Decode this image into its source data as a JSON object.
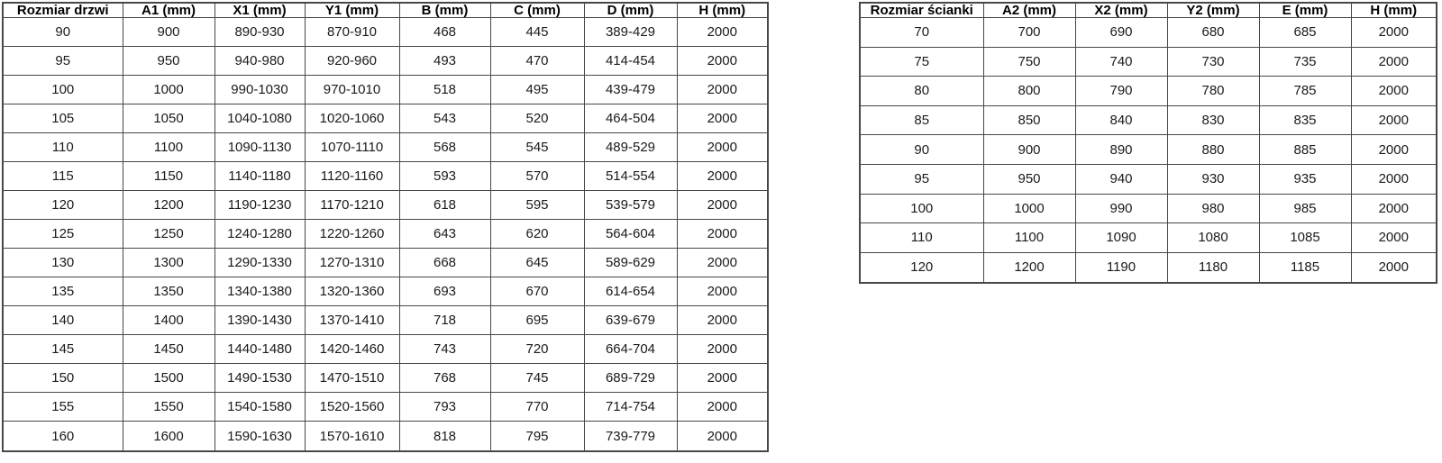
{
  "colors": {
    "background": "#ffffff",
    "border": "#474747",
    "text": "#1a1a1a",
    "header_text": "#000000"
  },
  "door_table": {
    "headers": [
      "Rozmiar drzwi",
      "A1 (mm)",
      "X1 (mm)",
      "Y1 (mm)",
      "B (mm)",
      "C (mm)",
      "D (mm)",
      "H (mm)"
    ],
    "rows": [
      [
        "90",
        "900",
        "890-930",
        "870-910",
        "468",
        "445",
        "389-429",
        "2000"
      ],
      [
        "95",
        "950",
        "940-980",
        "920-960",
        "493",
        "470",
        "414-454",
        "2000"
      ],
      [
        "100",
        "1000",
        "990-1030",
        "970-1010",
        "518",
        "495",
        "439-479",
        "2000"
      ],
      [
        "105",
        "1050",
        "1040-1080",
        "1020-1060",
        "543",
        "520",
        "464-504",
        "2000"
      ],
      [
        "110",
        "1100",
        "1090-1130",
        "1070-1110",
        "568",
        "545",
        "489-529",
        "2000"
      ],
      [
        "115",
        "1150",
        "1140-1180",
        "1120-1160",
        "593",
        "570",
        "514-554",
        "2000"
      ],
      [
        "120",
        "1200",
        "1190-1230",
        "1170-1210",
        "618",
        "595",
        "539-579",
        "2000"
      ],
      [
        "125",
        "1250",
        "1240-1280",
        "1220-1260",
        "643",
        "620",
        "564-604",
        "2000"
      ],
      [
        "130",
        "1300",
        "1290-1330",
        "1270-1310",
        "668",
        "645",
        "589-629",
        "2000"
      ],
      [
        "135",
        "1350",
        "1340-1380",
        "1320-1360",
        "693",
        "670",
        "614-654",
        "2000"
      ],
      [
        "140",
        "1400",
        "1390-1430",
        "1370-1410",
        "718",
        "695",
        "639-679",
        "2000"
      ],
      [
        "145",
        "1450",
        "1440-1480",
        "1420-1460",
        "743",
        "720",
        "664-704",
        "2000"
      ],
      [
        "150",
        "1500",
        "1490-1530",
        "1470-1510",
        "768",
        "745",
        "689-729",
        "2000"
      ],
      [
        "155",
        "1550",
        "1540-1580",
        "1520-1560",
        "793",
        "770",
        "714-754",
        "2000"
      ],
      [
        "160",
        "1600",
        "1590-1630",
        "1570-1610",
        "818",
        "795",
        "739-779",
        "2000"
      ]
    ]
  },
  "wall_table": {
    "headers": [
      "Rozmiar ścianki",
      "A2 (mm)",
      "X2 (mm)",
      "Y2 (mm)",
      "E (mm)",
      "H (mm)"
    ],
    "rows": [
      [
        "70",
        "700",
        "690",
        "680",
        "685",
        "2000"
      ],
      [
        "75",
        "750",
        "740",
        "730",
        "735",
        "2000"
      ],
      [
        "80",
        "800",
        "790",
        "780",
        "785",
        "2000"
      ],
      [
        "85",
        "850",
        "840",
        "830",
        "835",
        "2000"
      ],
      [
        "90",
        "900",
        "890",
        "880",
        "885",
        "2000"
      ],
      [
        "95",
        "950",
        "940",
        "930",
        "935",
        "2000"
      ],
      [
        "100",
        "1000",
        "990",
        "980",
        "985",
        "2000"
      ],
      [
        "110",
        "1100",
        "1090",
        "1080",
        "1085",
        "2000"
      ],
      [
        "120",
        "1200",
        "1190",
        "1180",
        "1185",
        "2000"
      ]
    ]
  }
}
